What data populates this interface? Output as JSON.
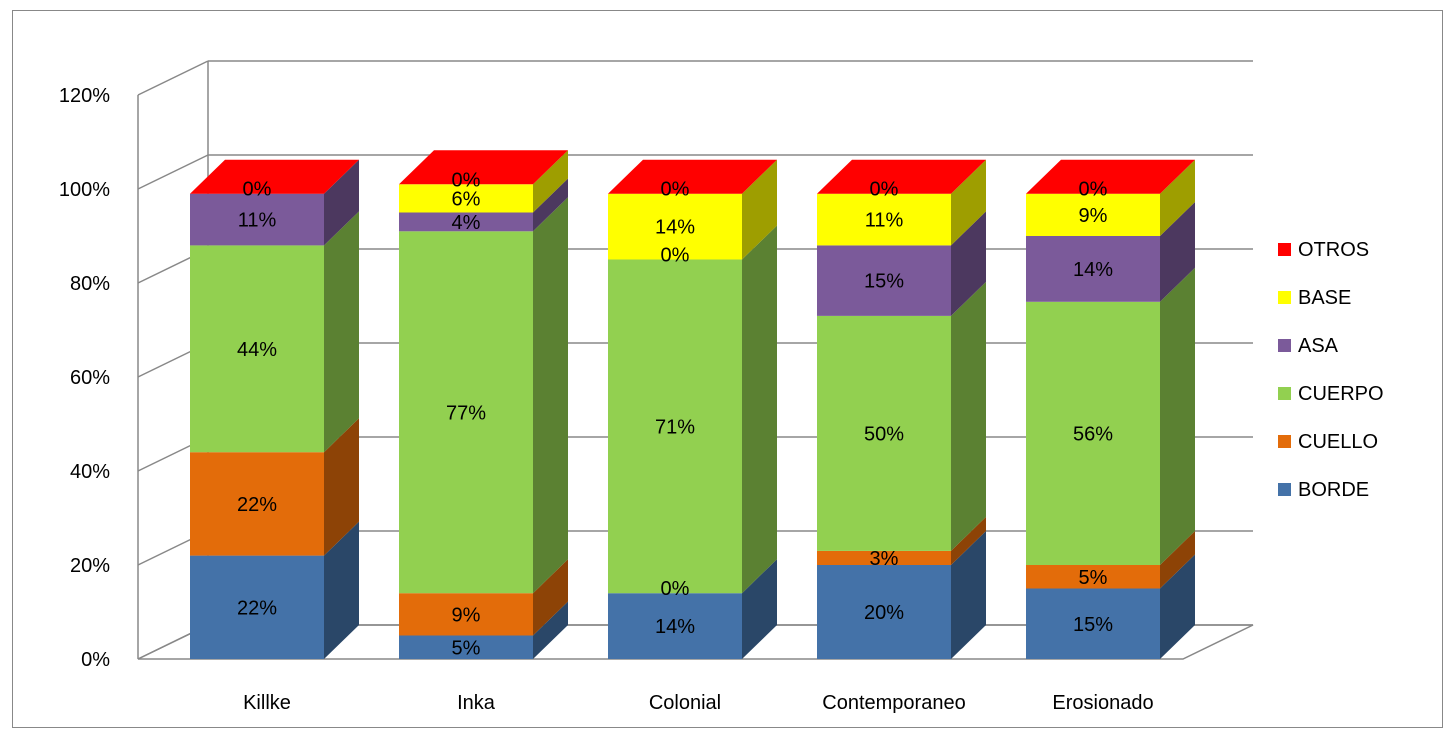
{
  "chart_data": {
    "type": "bar",
    "stacked": true,
    "three_d": true,
    "categories": [
      "Killke",
      "Inka",
      "Colonial",
      "Contemporaneo",
      "Erosionado"
    ],
    "series": [
      {
        "name": "BORDE",
        "color": "#4472A8",
        "values": [
          22,
          5,
          14,
          20,
          15
        ],
        "labels": [
          "22%",
          "5%",
          "14%",
          "20%",
          "15%"
        ]
      },
      {
        "name": "CUELLO",
        "color": "#E36C0A",
        "values": [
          22,
          9,
          0,
          3,
          5
        ],
        "labels": [
          "22%",
          "9%",
          "0%",
          "3%",
          "5%"
        ]
      },
      {
        "name": "CUERPO",
        "color": "#92D050",
        "values": [
          44,
          77,
          71,
          50,
          56
        ],
        "labels": [
          "44%",
          "77%",
          "71%",
          "50%",
          "56%"
        ]
      },
      {
        "name": "ASA",
        "color": "#7B5A9A",
        "values": [
          11,
          4,
          0,
          15,
          14
        ],
        "labels": [
          "11%",
          "4%",
          "0%",
          "15%",
          "14%"
        ]
      },
      {
        "name": "BASE",
        "color": "#FFFF00",
        "values": [
          0,
          6,
          14,
          11,
          9
        ],
        "labels": [
          "",
          "6%",
          "14%",
          "11%",
          "9%"
        ]
      },
      {
        "name": "OTROS",
        "color": "#FF0000",
        "values": [
          0,
          0,
          0,
          0,
          0
        ],
        "labels": [
          "0%",
          "0%",
          "0%",
          "0%",
          "0%"
        ]
      }
    ],
    "yticks": [
      "0%",
      "20%",
      "40%",
      "60%",
      "80%",
      "100%",
      "120%"
    ],
    "ylim": [
      0,
      120
    ],
    "grid": true,
    "legend_position": "right",
    "legend_order": [
      "OTROS",
      "BASE",
      "ASA",
      "CUERPO",
      "CUELLO",
      "BORDE"
    ]
  }
}
